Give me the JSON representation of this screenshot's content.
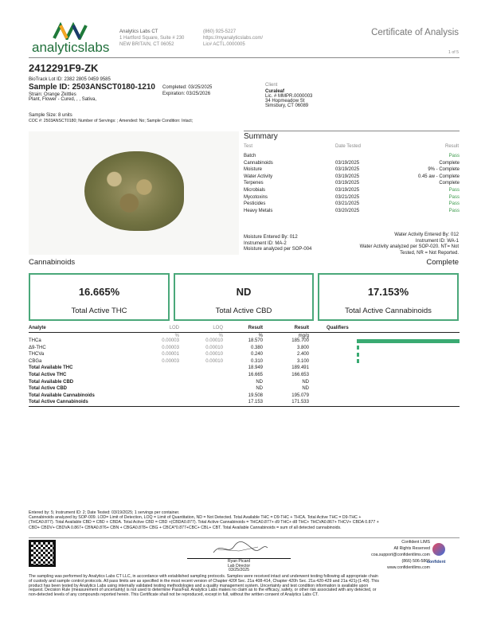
{
  "header": {
    "logo_text": "analyticslabs",
    "company": "Analytics Labs CT",
    "address1": "1 Hartford Square, Suite # 230",
    "address2": "NEW BRITAIN, CT 06052",
    "phone": "(860) 925-5227",
    "website": "https://myanalyticslabs.com/",
    "license": "Lic# ACTL.0000005",
    "doc_title": "Certificate of Analysis",
    "page": "1 of 5"
  },
  "sample": {
    "code": "2412291F9-ZK",
    "biotrack": "BioTrack Lot ID: 2382 2805 0459 9585",
    "sample_id": "Sample ID: 2503ANSCT0180-1210",
    "strain": "Strain: Orange Zkittles",
    "type": "Plant, Flower - Cured, , , Sativa,",
    "completed": "Completed: 03/25/2025",
    "expiration": "Expiration: 03/25/2026",
    "size": "Sample Size: 8 units",
    "coc": "COC #: 2503ANSCT0180; Number of Servings: ; Amended: No; Sample Condition: Intact;"
  },
  "client": {
    "label": "Client",
    "name": "Curaleaf",
    "license": "Lic. # MMPR.0000003",
    "street": "34 Hopmeadow St",
    "city": "Simsbury, CT 06089"
  },
  "summary": {
    "title": "Summary",
    "headers": [
      "Test",
      "Date Tested",
      "Result"
    ],
    "rows": [
      [
        "Batch",
        "",
        "Pass"
      ],
      [
        "Cannabinoids",
        "03/19/2025",
        "Complete"
      ],
      [
        "Moisture",
        "03/19/2025",
        "9% - Complete"
      ],
      [
        "Water Activity",
        "03/19/2025",
        "0.45 aw - Complete"
      ],
      [
        "Terpenes",
        "03/19/2025",
        "Complete"
      ],
      [
        "Microbials",
        "03/19/2025",
        "Pass"
      ],
      [
        "Mycotoxins",
        "03/21/2025",
        "Pass"
      ],
      [
        "Pesticides",
        "03/21/2025",
        "Pass"
      ],
      [
        "Heavy Metals",
        "03/20/2025",
        "Pass"
      ]
    ],
    "moisture_notes": [
      "Moisture Entered By: 012",
      "Instrument ID: MA-2",
      "Moisture analyzed per SOP-004"
    ],
    "wa_notes": [
      "Water Activity Entered By: 012",
      "Instrument ID: WA-1",
      "Water Activity analyzed per SOP-020. NT= Not",
      "Tested, NR = Not Reported."
    ]
  },
  "cannabinoids": {
    "title": "Cannabinoids",
    "status": "Complete",
    "boxes": [
      {
        "value": "16.665%",
        "label": "Total Active THC"
      },
      {
        "value": "ND",
        "label": "Total Active CBD"
      },
      {
        "value": "17.153%",
        "label": "Total Active Cannabinoids"
      }
    ],
    "headers": [
      "Analyte",
      "LOD",
      "LOQ",
      "Result",
      "Result",
      "Qualifiers"
    ],
    "units": [
      "%",
      "%",
      "%",
      "mg/g"
    ],
    "rows": [
      [
        "THCa",
        "0.00003",
        "0.00010",
        "18.570",
        "185.700"
      ],
      [
        "Δ9-THC",
        "0.00003",
        "0.00010",
        "0.380",
        "3.800"
      ],
      [
        "THCVa",
        "0.00001",
        "0.00010",
        "0.240",
        "2.400"
      ],
      [
        "CBGa",
        "0.00003",
        "0.00010",
        "0.310",
        "3.100"
      ],
      [
        "Total Available THC",
        "",
        "",
        "18.949",
        "189.491"
      ],
      [
        "Total Active THC",
        "",
        "",
        "16.665",
        "166.653"
      ],
      [
        "Total Available CBD",
        "",
        "",
        "ND",
        "ND"
      ],
      [
        "Total Active CBD",
        "",
        "",
        "ND",
        "ND"
      ],
      [
        "Total Available Cannabinoids",
        "",
        "",
        "19.508",
        "195.079"
      ],
      [
        "Total Active Cannabinoids",
        "",
        "",
        "17.153",
        "171.533"
      ]
    ],
    "bar_percent": [
      18.57,
      0.38,
      0.24,
      0.31
    ],
    "accent": "#3aaa72"
  },
  "notes": [
    "Entered by: 5; Instrument ID: 2; Date Tested: 03/19/2025; 1 servings per container.",
    "Cannabinoids analyzed by SOP-009. LOD= Limit of Detection, LOQ = Limit of Quantitation, ND = Not Detected. Total Available THC = D9-THC + THCA. Total Active THC = D9-THC +",
    "(THCA0.877). Total Available CBD = CBD + CBDA. Total Active CBD = CBD +(CBDA0.877). Total Active Cannabinoids = THCA0.877+ d9 THC+ d8 THC+ THCVA0.867+ THCV+ CBDA 0.877 +",
    "CBD+ CBDV+ CBDVA 0.867+ CBNA0.876+ CBN + CBGA0.878+ CBG + CBCA*0.877+CBC+ CBL+ CBT. Total Available Cannabinoids = sum of all detected cannabinoids."
  ],
  "signature": {
    "name": "Ryan Picard",
    "title": "Lab Director",
    "date": "03/25/2025"
  },
  "confident": {
    "l1": "Confident LIMS",
    "l2": "All Rights Reserved",
    "email": "coa.support@confidentlims.com",
    "phone": "(866) 506-5866",
    "web": "www.confidentlims.com",
    "logo_text": "confident"
  },
  "disclaimer": [
    "The sampling was performed by Analytics Labs CT LLC, in accordance with established sampling protocols. Samples were received intact and underwent testing following all appropriate chain",
    "of custody and sample control protocols. All pass limits are as specified in the most recent version of Chapter 420f Sec. 21a 408-414, Chapter 420h Sec. 21a 420-429 and 21a 421j-(1-40). This",
    "product has been tested by Analytics Labs using internally validated testing methodologies and a quality management system. Uncertainty and test condition information is available upon",
    "request. Decision Rule (measurement of uncertainty) is not used to determine Pass/Fail. Analytics Labs makes no claim as to the efficacy, safety, or other risk associated with any detected, or",
    "non-detected levels of any compounds reported herein. This Certificate shall not be reproduced, except in full, without the written consent of Analytics Labs CT."
  ]
}
